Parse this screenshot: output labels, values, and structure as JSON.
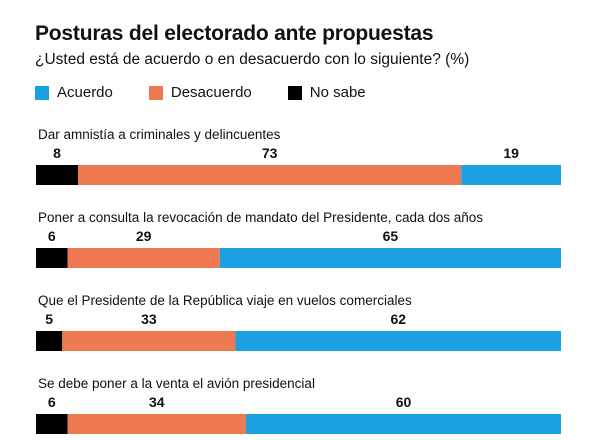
{
  "title": "Posturas del electorado ante propuestas",
  "subtitle": "¿Usted está de acuerdo o en desacuerdo con lo siguiente? (%)",
  "legend": [
    {
      "label": "Acuerdo",
      "color": "#1ba1e2"
    },
    {
      "label": "Desacuerdo",
      "color": "#ef7a52"
    },
    {
      "label": "No sabe",
      "color": "#000000"
    }
  ],
  "chart_data": {
    "type": "bar",
    "orientation": "horizontal-stacked",
    "categories": [
      "Dar amnistía a criminales y delincuentes",
      "Poner a consulta la revocación de mandato del Presidente, cada dos años",
      "Que el Presidente de la República viaje en vuelos comerciales",
      "Se debe poner a la venta el avión presidencial"
    ],
    "series": [
      {
        "name": "No sabe",
        "color": "#000000",
        "values": [
          8,
          6,
          5,
          6
        ]
      },
      {
        "name": "Desacuerdo",
        "color": "#ef7a52",
        "values": [
          73,
          29,
          33,
          34
        ]
      },
      {
        "name": "Acuerdo",
        "color": "#1ba1e2",
        "values": [
          19,
          65,
          62,
          60
        ]
      }
    ],
    "xlim": [
      0,
      100
    ],
    "legend_position": "top-left"
  }
}
